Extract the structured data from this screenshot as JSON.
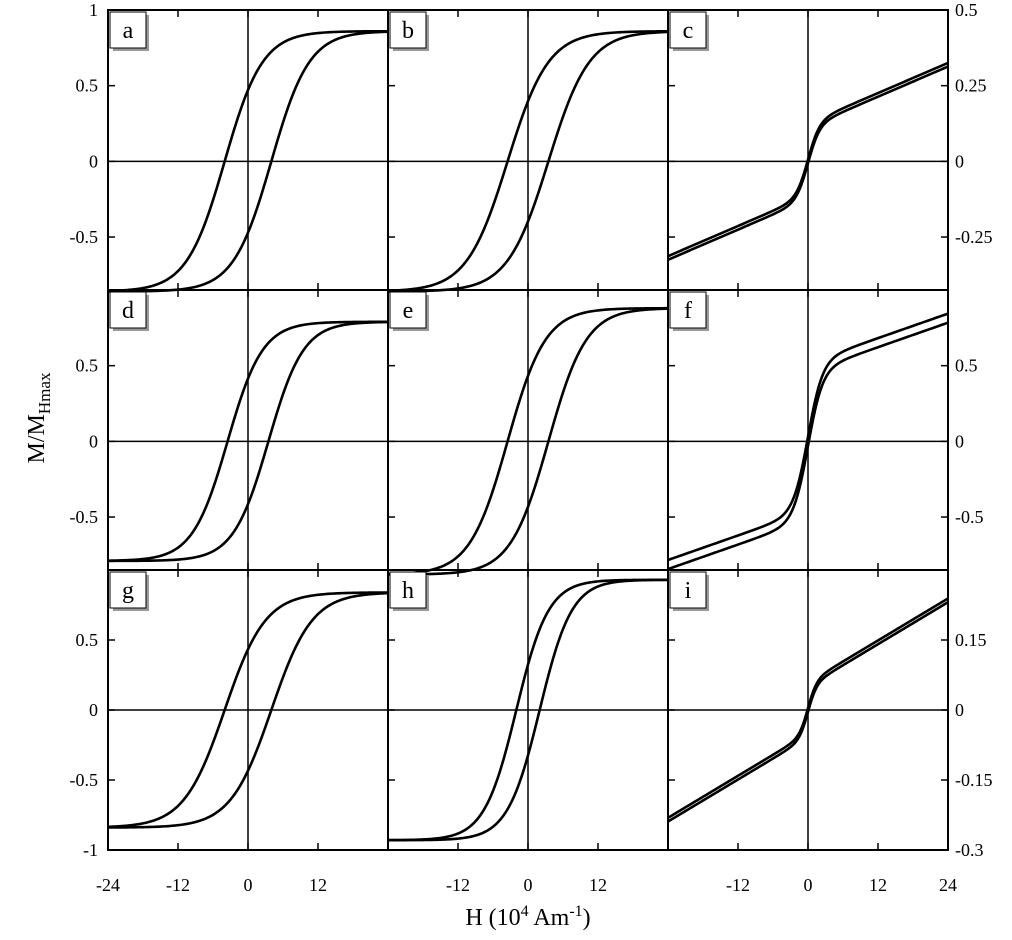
{
  "chart_data": {
    "type": "line",
    "layout": "3x3 grid of magnetic hysteresis loops",
    "xlabel": "H (10",
    "xlabel_sup": "4",
    "xlabel_unit": " Am",
    "xlabel_unit_sup": "-1",
    "xlabel_close": ")",
    "ylabel_main": "M/M",
    "ylabel_sub": "Hmax",
    "xlim": [
      -24,
      24
    ],
    "grid": false,
    "legend": "none",
    "line_color": "#000000",
    "left_axis": {
      "rows": [
        {
          "ylim": [
            -0.85,
            1.0
          ],
          "ticks": [
            1,
            0.5,
            0,
            -0.5
          ],
          "tick_labels": [
            "1",
            "0.5",
            "0",
            "-0.5"
          ]
        },
        {
          "ylim": [
            -0.85,
            1.0
          ],
          "ticks": [
            0.5,
            0,
            -0.5
          ],
          "tick_labels": [
            "0.5",
            "0",
            "-0.5"
          ]
        },
        {
          "ylim": [
            -1.0,
            1.0
          ],
          "ticks": [
            0.5,
            0,
            -0.5,
            -1
          ],
          "tick_labels": [
            "0.5",
            "0",
            "-0.5",
            "-1"
          ]
        }
      ]
    },
    "bottom_axis": {
      "columns": [
        {
          "ticks": [
            -24,
            -12,
            0,
            12
          ],
          "tick_labels": [
            "-24",
            "-12",
            "0",
            "12"
          ]
        },
        {
          "ticks": [
            -12,
            0,
            12
          ],
          "tick_labels": [
            "-12",
            "0",
            "12"
          ]
        },
        {
          "ticks": [
            -12,
            0,
            12,
            24
          ],
          "tick_labels": [
            "-12",
            "0",
            "12",
            "24"
          ]
        }
      ]
    },
    "right_axis": {
      "rows": [
        {
          "ylim": [
            -0.425,
            0.5
          ],
          "ticks": [
            0.5,
            0.25,
            0,
            -0.25
          ],
          "tick_labels": [
            "0.5",
            "0.25",
            "0",
            "-0.25"
          ]
        },
        {
          "ylim": [
            -0.85,
            1.0
          ],
          "ticks": [
            0.5,
            0,
            -0.5
          ],
          "tick_labels": [
            "0.5",
            "0",
            "-0.5"
          ]
        },
        {
          "ylim": [
            -0.3,
            0.3
          ],
          "ticks": [
            0.15,
            0,
            -0.15,
            -0.3
          ],
          "tick_labels": [
            "0.15",
            "0",
            "-0.15",
            "-0.3"
          ]
        }
      ]
    },
    "panels": [
      {
        "label": "a",
        "row": 0,
        "col": 0,
        "ymax": 0.86,
        "hc": 4.0,
        "width": 6.5,
        "kind": "loop"
      },
      {
        "label": "b",
        "row": 0,
        "col": 1,
        "ymax": 0.86,
        "hc": 3.5,
        "width": 7.0,
        "kind": "loop"
      },
      {
        "label": "c",
        "row": 0,
        "col": 2,
        "ymax": 0.34,
        "linear": 0.0083,
        "sat": 0.12,
        "sat_width": 2.0,
        "gap": 0.006,
        "kind": "narrow"
      },
      {
        "label": "d",
        "row": 1,
        "col": 0,
        "ymax": 0.79,
        "hc": 3.5,
        "width": 6.0,
        "kind": "loop"
      },
      {
        "label": "e",
        "row": 1,
        "col": 1,
        "ymax": 0.88,
        "hc": 3.5,
        "width": 6.5,
        "kind": "loop"
      },
      {
        "label": "f",
        "row": 1,
        "col": 2,
        "ymax": 0.81,
        "linear": 0.0135,
        "sat": 0.49,
        "sat_width": 2.5,
        "gap": 0.03,
        "kind": "narrow"
      },
      {
        "label": "g",
        "row": 2,
        "col": 0,
        "ymax": 0.84,
        "hc": 4.0,
        "width": 7.0,
        "kind": "loop"
      },
      {
        "label": "h",
        "row": 2,
        "col": 1,
        "ymax": 0.93,
        "hc": 2.0,
        "width": 5.5,
        "kind": "loop"
      },
      {
        "label": "i",
        "row": 2,
        "col": 2,
        "ymax": 0.233,
        "linear": 0.0075,
        "sat": 0.055,
        "sat_width": 1.5,
        "gap": 0.004,
        "kind": "narrow"
      }
    ]
  }
}
